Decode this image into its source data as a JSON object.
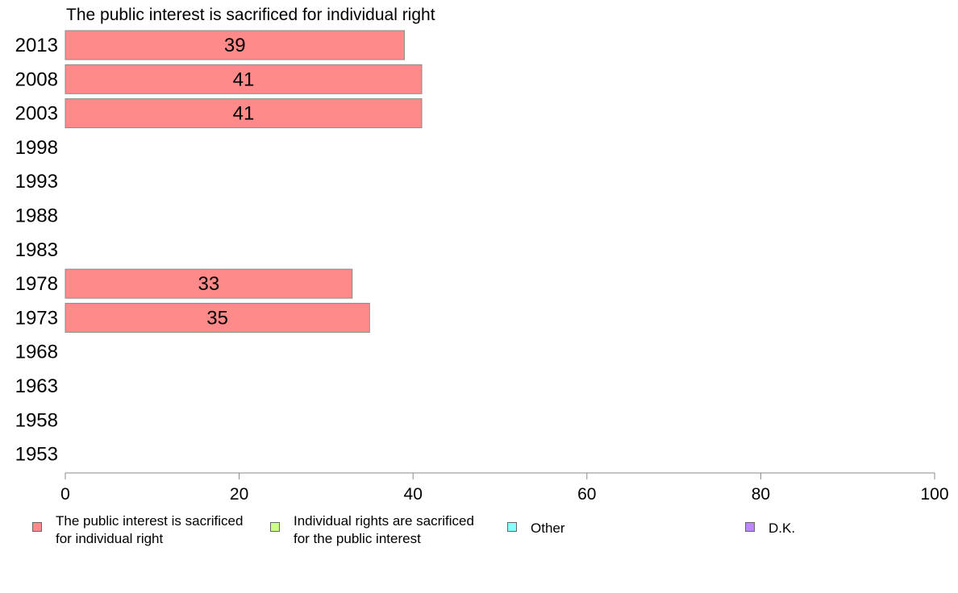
{
  "chart_data": {
    "type": "bar",
    "orientation": "horizontal",
    "title": "The public interest is sacrificed for individual right",
    "categories": [
      "2013",
      "2008",
      "2003",
      "1998",
      "1993",
      "1988",
      "1983",
      "1978",
      "1973",
      "1968",
      "1963",
      "1958",
      "1953"
    ],
    "series": [
      {
        "name": "The public interest is sacrificed for individual right",
        "color": "#ff8a8a",
        "values": [
          39,
          41,
          41,
          null,
          null,
          null,
          null,
          33,
          35,
          null,
          null,
          null,
          null
        ],
        "labels": [
          "39",
          "41",
          "41",
          "",
          "",
          "",
          "",
          "33",
          "35",
          "",
          "",
          "",
          ""
        ]
      }
    ],
    "xlim": [
      0,
      100
    ],
    "xticks": [
      "0",
      "20",
      "40",
      "60",
      "80",
      "100"
    ],
    "grid": false,
    "legend_position": "bottom"
  },
  "legend": [
    {
      "label": "The public interest is sacrificed\nfor individual right",
      "color": "#ff8a8a"
    },
    {
      "label": "Individual rights are sacrificed\nfor the public interest",
      "color": "#ccff88"
    },
    {
      "label": "Other",
      "color": "#88ffff"
    },
    {
      "label": "D.K.",
      "color": "#bb88ff"
    }
  ]
}
